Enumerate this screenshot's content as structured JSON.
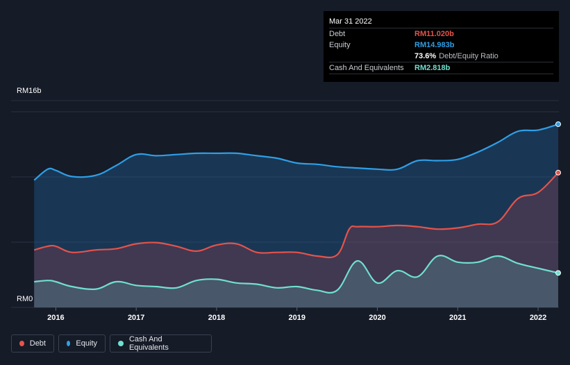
{
  "tooltip": {
    "date": "Mar 31 2022",
    "rows": [
      {
        "label": "Debt",
        "value": "RM11.020b",
        "color": "#e5534b"
      },
      {
        "label": "Equity",
        "value": "RM14.983b",
        "color": "#2f9fe6"
      },
      {
        "label": "",
        "value": "73.6%",
        "extra": "Debt/Equity Ratio",
        "color": "#ffffff"
      },
      {
        "label": "Cash And Equivalents",
        "value": "RM2.818b",
        "color": "#6fe0cf"
      }
    ]
  },
  "legend": [
    {
      "label": "Debt",
      "color": "#e5534b"
    },
    {
      "label": "Equity",
      "color": "#2f9fe6"
    },
    {
      "label": "Cash And Equivalents",
      "color": "#6fe0cf"
    }
  ],
  "chart_data": {
    "type": "area",
    "y_unit": "RM billions",
    "ylim": [
      0,
      16
    ],
    "y_tick_labels": [
      "RM0",
      "RM16b"
    ],
    "x_tick_labels": [
      "2016",
      "2017",
      "2018",
      "2019",
      "2020",
      "2021",
      "2022"
    ],
    "xlim": [
      2015.72,
      2022.25
    ],
    "grid": true,
    "legend_position": "bottom-left",
    "series": [
      {
        "name": "Equity",
        "color": "#2f9fe6",
        "x": [
          2015.73,
          2015.9,
          2016.0,
          2016.2,
          2016.5,
          2016.75,
          2017.0,
          2017.25,
          2017.5,
          2017.75,
          2018.0,
          2018.25,
          2018.5,
          2018.75,
          2019.0,
          2019.25,
          2019.5,
          2019.75,
          2020.0,
          2020.25,
          2020.5,
          2020.75,
          2021.0,
          2021.25,
          2021.5,
          2021.75,
          2022.0,
          2022.25
        ],
        "values": [
          10.4,
          11.3,
          11.2,
          10.7,
          10.8,
          11.6,
          12.5,
          12.4,
          12.5,
          12.6,
          12.6,
          12.6,
          12.4,
          12.2,
          11.8,
          11.7,
          11.5,
          11.4,
          11.3,
          11.3,
          12.0,
          12.0,
          12.1,
          12.7,
          13.5,
          14.4,
          14.5,
          14.98
        ]
      },
      {
        "name": "Debt",
        "color": "#e5534b",
        "x": [
          2015.73,
          2015.9,
          2016.0,
          2016.2,
          2016.5,
          2016.75,
          2017.0,
          2017.25,
          2017.5,
          2017.75,
          2018.0,
          2018.25,
          2018.5,
          2018.75,
          2019.0,
          2019.25,
          2019.5,
          2019.65,
          2019.75,
          2020.0,
          2020.25,
          2020.5,
          2020.75,
          2021.0,
          2021.25,
          2021.5,
          2021.75,
          2022.0,
          2022.25
        ],
        "values": [
          4.7,
          5.0,
          5.0,
          4.5,
          4.7,
          4.8,
          5.2,
          5.3,
          5.0,
          4.6,
          5.1,
          5.2,
          4.5,
          4.5,
          4.5,
          4.2,
          4.3,
          6.4,
          6.6,
          6.6,
          6.7,
          6.6,
          6.4,
          6.5,
          6.8,
          7.0,
          8.9,
          9.4,
          11.02
        ]
      },
      {
        "name": "Cash And Equivalents",
        "color": "#6fe0cf",
        "x": [
          2015.73,
          2015.9,
          2016.0,
          2016.2,
          2016.5,
          2016.75,
          2017.0,
          2017.25,
          2017.5,
          2017.75,
          2018.0,
          2018.25,
          2018.5,
          2018.75,
          2019.0,
          2019.25,
          2019.5,
          2019.75,
          2020.0,
          2020.25,
          2020.5,
          2020.75,
          2021.0,
          2021.25,
          2021.5,
          2021.75,
          2022.0,
          2022.25
        ],
        "values": [
          2.1,
          2.2,
          2.1,
          1.7,
          1.5,
          2.1,
          1.8,
          1.7,
          1.6,
          2.2,
          2.3,
          2.0,
          1.9,
          1.6,
          1.7,
          1.4,
          1.4,
          3.8,
          2.0,
          3.0,
          2.5,
          4.2,
          3.7,
          3.7,
          4.2,
          3.6,
          3.2,
          2.818
        ]
      }
    ]
  }
}
